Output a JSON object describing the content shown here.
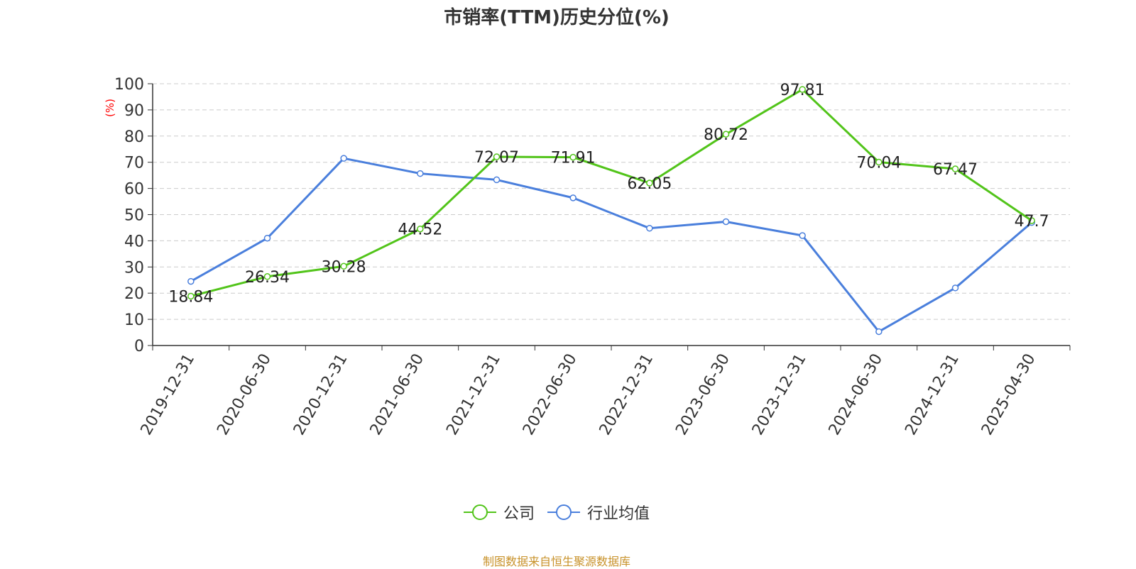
{
  "chart_data": {
    "type": "line",
    "title": "市销率(TTM)历史分位(%)",
    "ylabel": "(%)",
    "xlabel": "",
    "ylim": [
      0,
      100
    ],
    "yticks": [
      0,
      10,
      20,
      30,
      40,
      50,
      60,
      70,
      80,
      90,
      100
    ],
    "categories": [
      "2019-12-31",
      "2020-06-30",
      "2020-12-31",
      "2021-06-30",
      "2021-12-31",
      "2022-06-30",
      "2022-12-31",
      "2023-06-30",
      "2023-12-31",
      "2024-06-30",
      "2024-12-31",
      "2025-04-30"
    ],
    "series": [
      {
        "name": "公司",
        "color": "#52c41a",
        "values": [
          18.84,
          26.34,
          30.28,
          44.52,
          72.07,
          71.91,
          62.05,
          80.72,
          97.81,
          70.04,
          67.47,
          47.7
        ],
        "labels": [
          "18.84",
          "26.34",
          "30.28",
          "44.52",
          "72.07",
          "71.91",
          "62.05",
          "80.72",
          "97.81",
          "70.04",
          "67.47",
          "47.7"
        ]
      },
      {
        "name": "行业均值",
        "color": "#4a7fdc",
        "values": [
          24.5,
          41.0,
          71.5,
          65.7,
          63.3,
          56.4,
          44.8,
          47.3,
          42.0,
          5.3,
          22.0,
          47.0
        ]
      }
    ],
    "grid": true,
    "legend_position": "bottom-center"
  },
  "source_text": "制图数据来自恒生聚源数据库"
}
